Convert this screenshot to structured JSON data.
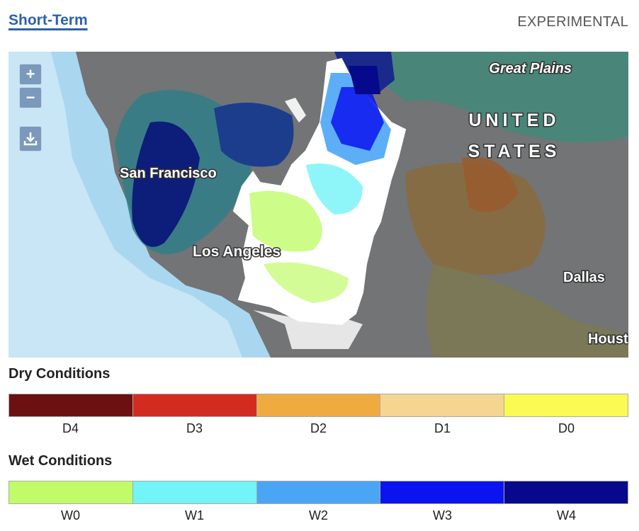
{
  "header": {
    "title": "Short-Term",
    "tag": "EXPERIMENTAL"
  },
  "map": {
    "controls": {
      "zoom_in": "+",
      "zoom_out": "−"
    },
    "labels": [
      "Great Plains",
      "UNITED",
      "STATES",
      "San Francisco",
      "Los Angeles",
      "Dallas",
      "Houston"
    ]
  },
  "legends": [
    {
      "title": "Dry Conditions",
      "items": [
        {
          "label": "D4",
          "color": "#6b1111"
        },
        {
          "label": "D3",
          "color": "#d42b20"
        },
        {
          "label": "D2",
          "color": "#f0ab40"
        },
        {
          "label": "D1",
          "color": "#f5d590"
        },
        {
          "label": "D0",
          "color": "#fafa52"
        }
      ]
    },
    {
      "title": "Wet Conditions",
      "items": [
        {
          "label": "W0",
          "color": "#c1fb6a"
        },
        {
          "label": "W1",
          "color": "#72f4f8"
        },
        {
          "label": "W2",
          "color": "#4aa6f5"
        },
        {
          "label": "W3",
          "color": "#0a14f0"
        },
        {
          "label": "W4",
          "color": "#06098c"
        }
      ]
    }
  ]
}
